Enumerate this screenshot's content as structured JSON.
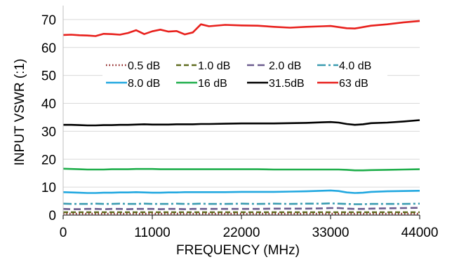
{
  "chart_data": {
    "type": "line",
    "title": "",
    "xlabel": "FREQUENCY (MHz)",
    "ylabel": "INPUT VSWR (:1)",
    "xlim": [
      0,
      44000
    ],
    "ylim": [
      0,
      75
    ],
    "xticks": [
      0,
      11000,
      22000,
      33000,
      44000
    ],
    "yticks": [
      0,
      10,
      20,
      30,
      40,
      50,
      60,
      70
    ],
    "grid": "horizontal",
    "legend": "inside-top",
    "x": [
      0,
      1000,
      2000,
      3000,
      4000,
      5000,
      6000,
      7000,
      8000,
      9000,
      10000,
      11000,
      12000,
      13000,
      14000,
      15000,
      16000,
      17000,
      18000,
      20000,
      22000,
      24000,
      26000,
      28000,
      30000,
      32000,
      33000,
      34000,
      35000,
      36000,
      37000,
      38000,
      40000,
      42000,
      44000
    ],
    "series": [
      {
        "name": "0.5 dB",
        "color": "#8B1A1A",
        "dash": "1.5,3",
        "values": [
          0.5,
          0.5,
          0.5,
          0.5,
          0.5,
          0.5,
          0.5,
          0.5,
          0.5,
          0.5,
          0.5,
          0.5,
          0.5,
          0.5,
          0.5,
          0.5,
          0.5,
          0.5,
          0.5,
          0.5,
          0.5,
          0.5,
          0.5,
          0.5,
          0.5,
          0.5,
          0.5,
          0.5,
          0.5,
          0.5,
          0.5,
          0.5,
          0.5,
          0.5,
          0.5
        ]
      },
      {
        "name": "1.0 dB",
        "color": "#5F6B1F",
        "dash": "7,4",
        "values": [
          1.0,
          1.0,
          1.0,
          1.0,
          1.0,
          1.0,
          1.0,
          1.0,
          1.0,
          1.0,
          1.0,
          1.0,
          1.0,
          1.0,
          1.0,
          1.0,
          1.0,
          1.0,
          1.0,
          1.0,
          1.0,
          1.0,
          1.0,
          1.0,
          1.0,
          1.0,
          1.0,
          1.0,
          1.0,
          1.0,
          1.0,
          1.0,
          1.0,
          1.0,
          1.0
        ]
      },
      {
        "name": "2.0 dB",
        "color": "#6B5B8E",
        "dash": "10,5",
        "values": [
          2.2,
          2.1,
          2.1,
          2.2,
          2.2,
          2.1,
          2.2,
          2.2,
          2.1,
          2.2,
          2.2,
          2.2,
          2.1,
          2.2,
          2.2,
          2.1,
          2.2,
          2.2,
          2.2,
          2.2,
          2.2,
          2.2,
          2.3,
          2.3,
          2.3,
          2.4,
          2.5,
          2.5,
          2.3,
          2.2,
          2.2,
          2.3,
          2.4,
          2.5,
          2.6
        ]
      },
      {
        "name": "4.0 dB",
        "color": "#3A9BB0",
        "dash": "12,4,3,4",
        "values": [
          4.1,
          4.0,
          4.0,
          4.0,
          4.1,
          4.0,
          4.0,
          4.1,
          4.0,
          4.0,
          4.1,
          4.0,
          4.0,
          4.0,
          4.1,
          4.0,
          4.0,
          4.1,
          4.0,
          4.0,
          4.1,
          4.0,
          4.1,
          4.0,
          4.1,
          4.1,
          4.2,
          4.1,
          4.0,
          3.9,
          3.9,
          4.0,
          4.0,
          4.0,
          4.1
        ]
      },
      {
        "name": "8.0 dB",
        "color": "#22A8E0",
        "dash": "",
        "values": [
          8.2,
          8.1,
          8.0,
          7.9,
          7.9,
          8.0,
          8.0,
          8.1,
          8.1,
          8.2,
          8.1,
          8.0,
          8.0,
          8.1,
          8.1,
          8.2,
          8.2,
          8.2,
          8.2,
          8.2,
          8.3,
          8.3,
          8.3,
          8.4,
          8.5,
          8.7,
          8.8,
          8.6,
          8.1,
          7.9,
          8.0,
          8.3,
          8.5,
          8.6,
          8.7
        ]
      },
      {
        "name": "16 dB",
        "color": "#1FAE4B",
        "dash": "",
        "values": [
          16.6,
          16.5,
          16.4,
          16.3,
          16.3,
          16.3,
          16.4,
          16.4,
          16.4,
          16.5,
          16.5,
          16.5,
          16.4,
          16.4,
          16.4,
          16.4,
          16.4,
          16.4,
          16.4,
          16.4,
          16.4,
          16.4,
          16.3,
          16.3,
          16.3,
          16.3,
          16.3,
          16.3,
          16.2,
          16.0,
          16.0,
          16.1,
          16.2,
          16.3,
          16.4
        ]
      },
      {
        "name": "31.5dB",
        "color": "#000000",
        "dash": "",
        "values": [
          32.3,
          32.3,
          32.2,
          32.1,
          32.1,
          32.2,
          32.2,
          32.3,
          32.3,
          32.4,
          32.5,
          32.4,
          32.4,
          32.4,
          32.5,
          32.5,
          32.5,
          32.6,
          32.6,
          32.7,
          32.8,
          32.8,
          32.8,
          32.9,
          33.0,
          33.2,
          33.3,
          33.1,
          32.6,
          32.3,
          32.5,
          32.9,
          33.1,
          33.5,
          34.0
        ]
      },
      {
        "name": "63 dB",
        "color": "#E8201C",
        "dash": "",
        "values": [
          64.5,
          64.6,
          64.4,
          64.3,
          64.1,
          64.9,
          64.8,
          64.6,
          65.2,
          66.2,
          64.8,
          65.8,
          66.4,
          65.7,
          65.9,
          64.7,
          65.4,
          68.3,
          67.6,
          68.1,
          67.9,
          67.8,
          67.4,
          67.1,
          67.4,
          67.6,
          67.7,
          67.3,
          66.9,
          66.8,
          67.3,
          67.8,
          68.3,
          69.0,
          69.5
        ]
      }
    ]
  }
}
